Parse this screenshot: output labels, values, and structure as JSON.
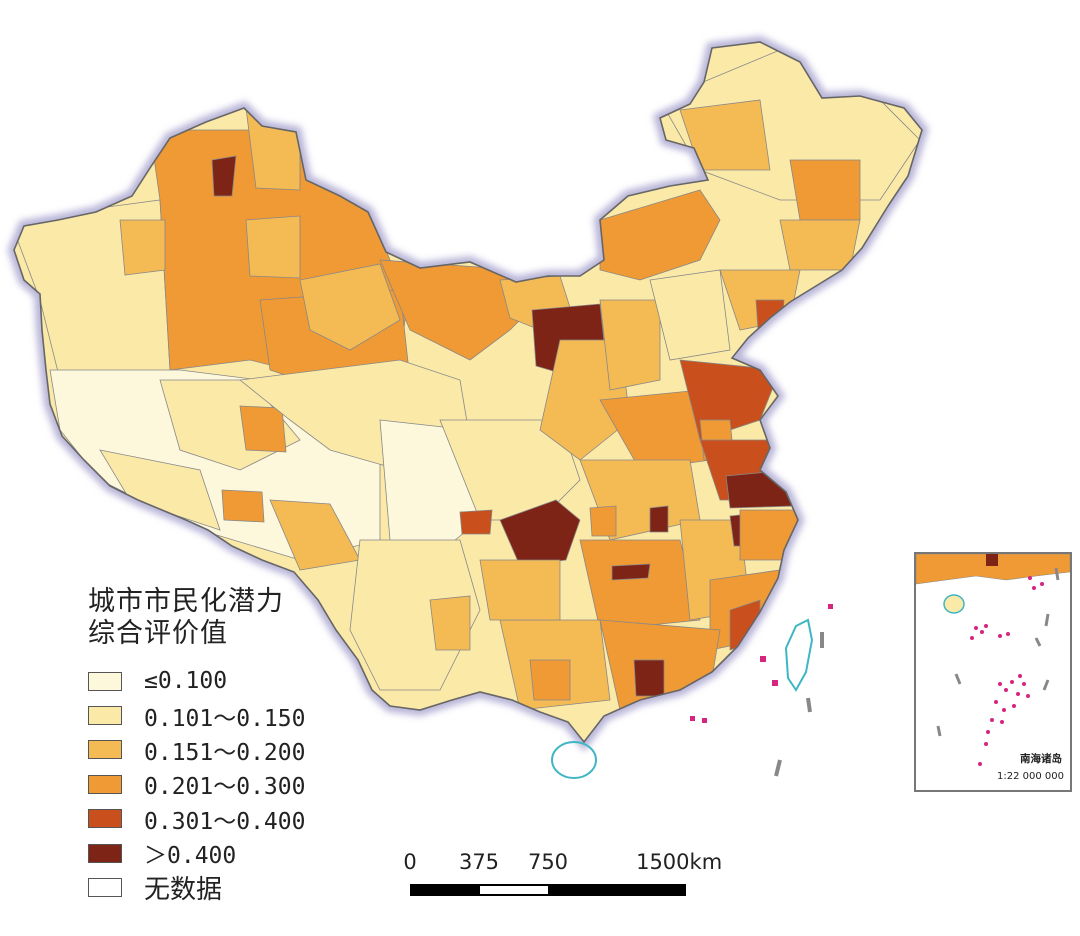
{
  "map": {
    "legend": {
      "title_line1": "城市市民化潜力",
      "title_line2": "综合评价值",
      "classes": [
        {
          "label": "≤0.100",
          "color": "#fdf7dc"
        },
        {
          "label": "0.101～0.150",
          "color": "#fbe9a8"
        },
        {
          "label": "0.151～0.200",
          "color": "#f4bb55"
        },
        {
          "label": "0.201～0.300",
          "color": "#ef9a34"
        },
        {
          "label": "0.301～0.400",
          "color": "#c9501c"
        },
        {
          "label": "＞0.400",
          "color": "#7d2416"
        },
        {
          "label": "无数据",
          "color": "#ffffff"
        }
      ]
    },
    "scale_bar": {
      "ticks": [
        "0",
        "375",
        "750",
        "1500km"
      ],
      "tick_values_km": [
        0,
        375,
        750,
        1500
      ]
    },
    "inset": {
      "label": "南海诸岛",
      "scale": "1:22 000 000"
    },
    "colors": {
      "boundary_halo": "#b9b6d8",
      "province_line": "#777777",
      "coast": "#3fb6c4",
      "islands": "#d6257f"
    }
  }
}
